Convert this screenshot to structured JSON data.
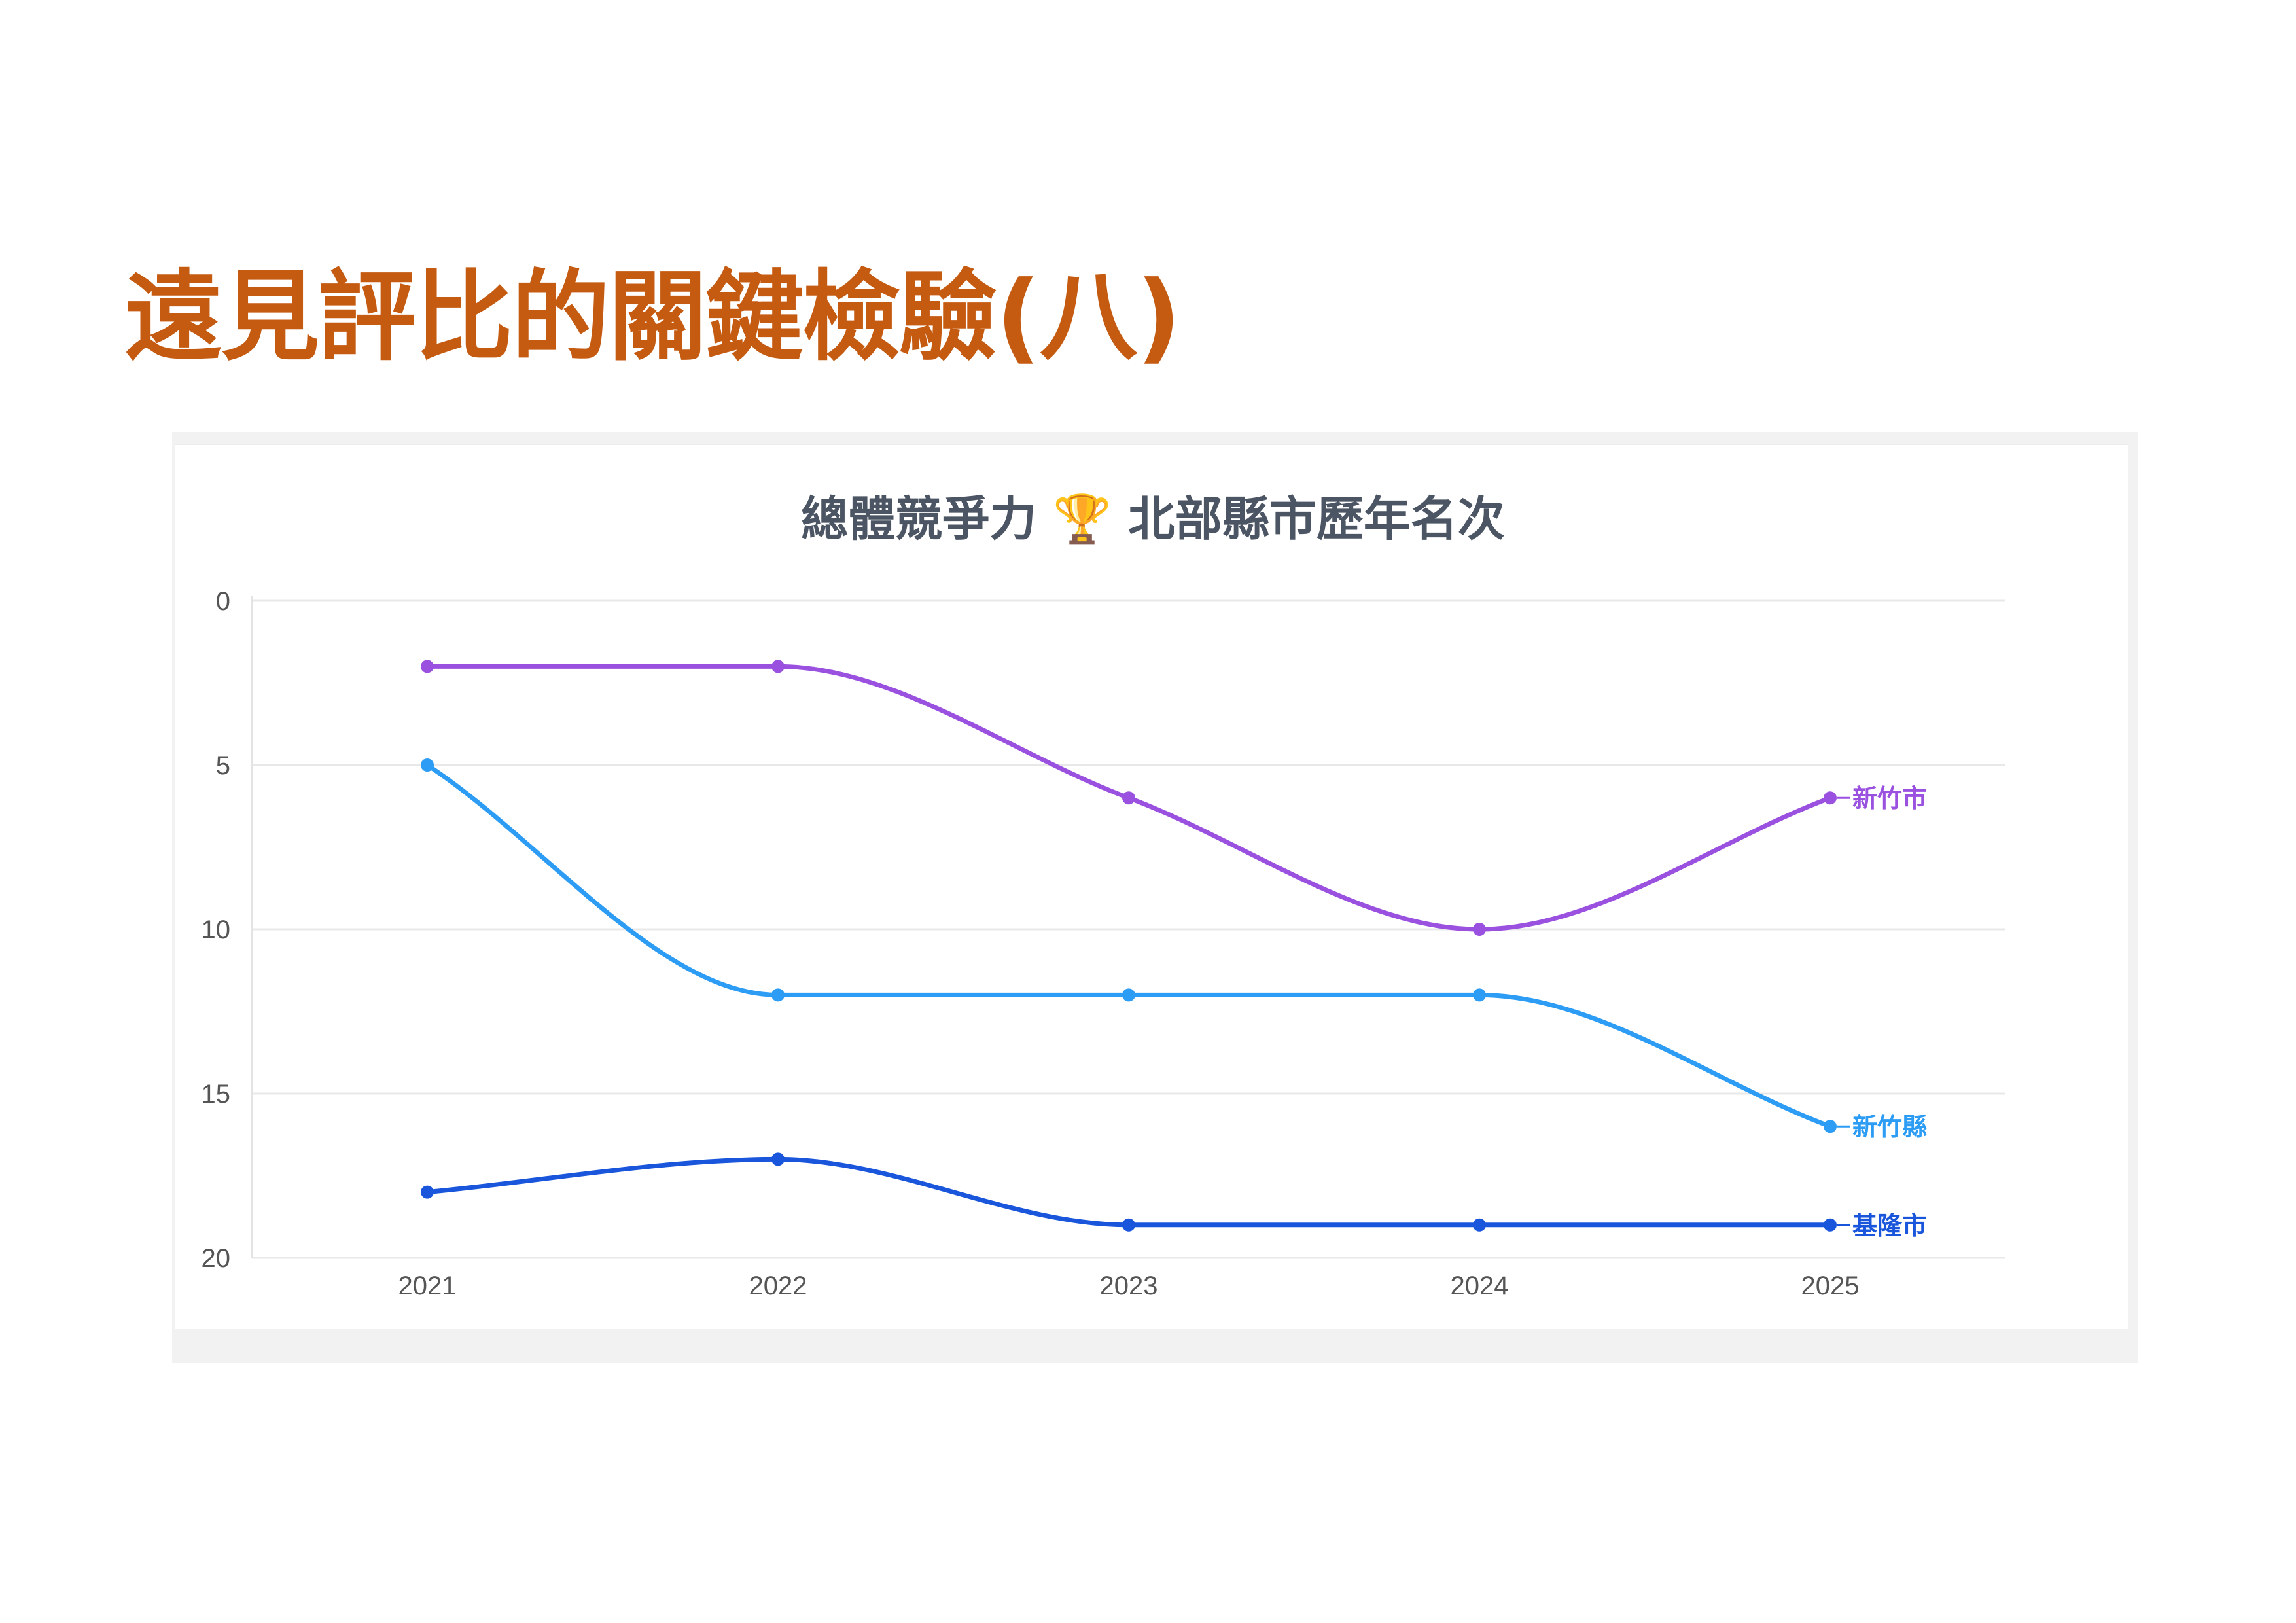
{
  "slide": {
    "title": "遠見評比的關鍵檢驗(八)",
    "title_color": "#c55a11"
  },
  "chart_data": {
    "type": "line",
    "title": "總體競爭力 🏆 北部縣市歷年名次",
    "x": [
      "2021",
      "2022",
      "2023",
      "2024",
      "2025"
    ],
    "y_ticks": [
      "0",
      "5",
      "10",
      "15",
      "20"
    ],
    "ylim": [
      0,
      20
    ],
    "y_reversed": true,
    "grid": true,
    "smooth": true,
    "legend": "line-end labels",
    "series": [
      {
        "name": "新竹市",
        "values": [
          2,
          2,
          6,
          10,
          6
        ],
        "color": "#9b51e0"
      },
      {
        "name": "新竹縣",
        "values": [
          5,
          12,
          12,
          12,
          16
        ],
        "color": "#2d9cf4"
      },
      {
        "name": "基隆市",
        "values": [
          18,
          17,
          19,
          19,
          19
        ],
        "color": "#1a56db"
      }
    ]
  }
}
